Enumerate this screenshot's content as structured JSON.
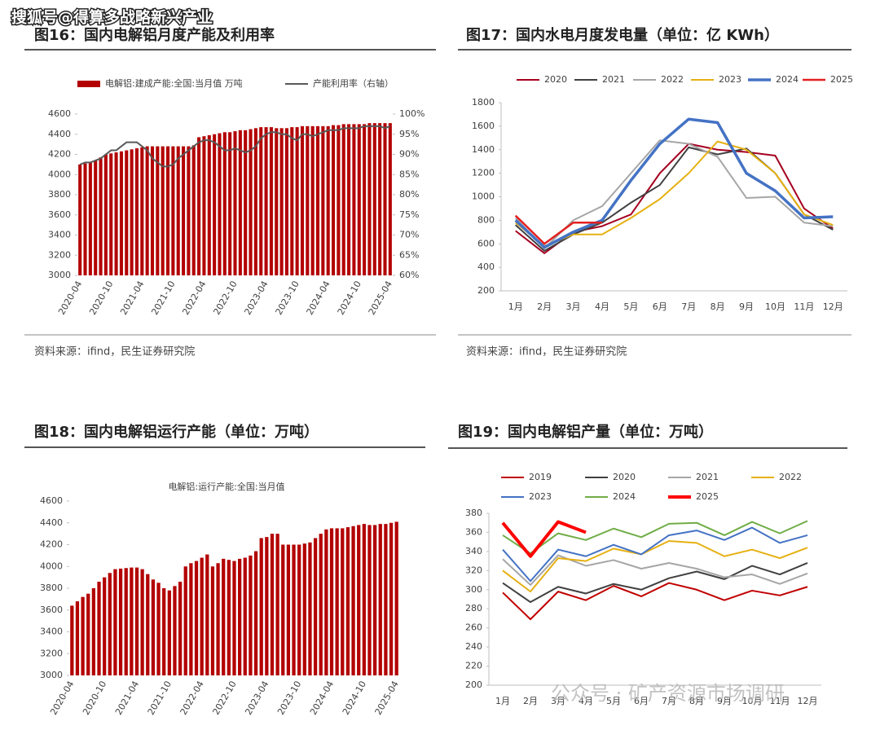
{
  "watermark": "搜狐号@得算多战略新兴产业",
  "watermark_bottom": "公众号 · 矿产资源市场调研",
  "chart_data": [
    {
      "type": "bar",
      "title": "图16：国内电解铝月度产能及利用率",
      "source": "资料来源：ifind，民生证券研究院",
      "categories": [
        "2020-04",
        null,
        null,
        null,
        null,
        null,
        "2020-10",
        null,
        null,
        null,
        null,
        null,
        "2021-04",
        null,
        null,
        null,
        null,
        null,
        "2021-10",
        null,
        null,
        null,
        null,
        null,
        "2022-04",
        null,
        null,
        null,
        null,
        null,
        "2022-10",
        null,
        null,
        null,
        null,
        null,
        "2023-04",
        null,
        null,
        null,
        null,
        null,
        "2023-10",
        null,
        null,
        null,
        null,
        null,
        "2024-04",
        null,
        null,
        null,
        null,
        null,
        "2024-10",
        null,
        null,
        null,
        null,
        null,
        "2025-04"
      ],
      "series": [
        {
          "name": "电解铝:建成产能:全国:当月值 万吨",
          "color": "#b30000",
          "values": [
            4100,
            4110,
            4120,
            4140,
            4170,
            4200,
            4210,
            4220,
            4230,
            4240,
            4250,
            4260,
            4270,
            4280,
            4280,
            4280,
            4280,
            4280,
            4280,
            4280,
            4280,
            4280,
            4290,
            4370,
            4380,
            4390,
            4400,
            4410,
            4420,
            4420,
            4430,
            4440,
            4440,
            4450,
            4460,
            4470,
            4470,
            4470,
            4460,
            4460,
            4460,
            4470,
            4470,
            4480,
            4480,
            4480,
            4480,
            4480,
            4480,
            4490,
            4490,
            4500,
            4500,
            4500,
            4500,
            4500,
            4510,
            4510,
            4510,
            4510,
            4510
          ]
        },
        {
          "name": "产能利用率（右轴）",
          "color": "#595959",
          "axis": "y2",
          "values": [
            87.5,
            88,
            88,
            88.5,
            89,
            90,
            91,
            91,
            92,
            93,
            93,
            93,
            92,
            91,
            89,
            88,
            87,
            87,
            87.5,
            89,
            90,
            91,
            92,
            93,
            93.5,
            93.5,
            93,
            92,
            91,
            91,
            91.5,
            91,
            90.5,
            91,
            92,
            94,
            95,
            95.5,
            95.5,
            95,
            95,
            94,
            93.5,
            95,
            95,
            94.5,
            95,
            95.5,
            96,
            96,
            96,
            96.5,
            96.5,
            96.5,
            96.5,
            97,
            97,
            97,
            97,
            96.5,
            97
          ]
        }
      ],
      "ylim": [
        3000,
        4600
      ],
      "yticks": [
        3000,
        3200,
        3400,
        3600,
        3800,
        4000,
        4200,
        4400,
        4600
      ],
      "y2lim": [
        60,
        100
      ],
      "y2ticks": [
        {
          "value": 60,
          "label": "60%"
        },
        {
          "value": 65,
          "label": "65%"
        },
        {
          "value": 70,
          "label": "70%"
        },
        {
          "value": 75,
          "label": "75%"
        },
        {
          "value": 80,
          "label": "80%"
        },
        {
          "value": 85,
          "label": "85%"
        },
        {
          "value": 90,
          "label": "90%"
        },
        {
          "value": 95,
          "label": "95%"
        },
        {
          "value": 100,
          "label": "100%"
        }
      ]
    },
    {
      "type": "line",
      "title": "图17：国内水电月度发电量（单位：亿 KWh）",
      "source": "资料来源：ifind，民生证券研究院",
      "categories": [
        "1月",
        "2月",
        "3月",
        "4月",
        "5月",
        "6月",
        "7月",
        "8月",
        "9月",
        "10月",
        "11月",
        "12月"
      ],
      "series": [
        {
          "name": "2020",
          "color": "#a50021",
          "width": 2,
          "values": [
            710,
            520,
            700,
            750,
            850,
            1200,
            1450,
            1400,
            1380,
            1350,
            900,
            730
          ]
        },
        {
          "name": "2021",
          "color": "#404040",
          "width": 2,
          "values": [
            760,
            540,
            680,
            780,
            950,
            1100,
            1420,
            1360,
            1410,
            1200,
            850,
            720
          ]
        },
        {
          "name": "2022",
          "color": "#a6a6a6",
          "width": 2,
          "values": [
            820,
            560,
            800,
            920,
            1200,
            1480,
            1450,
            1340,
            990,
            1000,
            780,
            750
          ]
        },
        {
          "name": "2023",
          "color": "#e6b012",
          "width": 2,
          "values": [
            780,
            580,
            680,
            680,
            820,
            980,
            1200,
            1470,
            1400,
            1200,
            850,
            760
          ]
        },
        {
          "name": "2024",
          "color": "#4472c4",
          "width": 3.5,
          "values": [
            800,
            570,
            700,
            800,
            1140,
            1450,
            1660,
            1630,
            1200,
            1050,
            820,
            830
          ]
        },
        {
          "name": "2025",
          "color": "#e32020",
          "width": 2.5,
          "values": [
            840,
            600,
            780,
            780,
            null,
            null,
            null,
            null,
            null,
            null,
            null,
            null
          ]
        }
      ],
      "ylim": [
        200,
        1800
      ],
      "yticks": [
        200,
        400,
        600,
        800,
        1000,
        1200,
        1400,
        1600,
        1800
      ]
    },
    {
      "type": "bar",
      "title": "图18：国内电解铝运行产能（单位：万吨）",
      "categories": [
        "2020-04",
        null,
        null,
        null,
        null,
        null,
        "2020-10",
        null,
        null,
        null,
        null,
        null,
        "2021-04",
        null,
        null,
        null,
        null,
        null,
        "2021-10",
        null,
        null,
        null,
        null,
        null,
        "2022-04",
        null,
        null,
        null,
        null,
        null,
        "2022-10",
        null,
        null,
        null,
        null,
        null,
        "2023-04",
        null,
        null,
        null,
        null,
        null,
        "2023-10",
        null,
        null,
        null,
        null,
        null,
        "2024-04",
        null,
        null,
        null,
        null,
        null,
        "2024-10",
        null,
        null,
        null,
        null,
        null,
        "2025-04"
      ],
      "series": [
        {
          "name": "电解铝:运行产能:全国:当月值",
          "color": "#b30000",
          "values": [
            3640,
            3680,
            3720,
            3750,
            3800,
            3860,
            3900,
            3940,
            3975,
            3980,
            3985,
            3990,
            3990,
            3975,
            3930,
            3880,
            3850,
            3800,
            3780,
            3820,
            3860,
            4000,
            4030,
            4050,
            4080,
            4110,
            4000,
            4030,
            4070,
            4060,
            4050,
            4070,
            4080,
            4100,
            4140,
            4260,
            4270,
            4300,
            4300,
            4200,
            4200,
            4200,
            4200,
            4210,
            4220,
            4260,
            4300,
            4340,
            4350,
            4350,
            4350,
            4360,
            4370,
            4380,
            4390,
            4380,
            4380,
            4390,
            4390,
            4400,
            4410
          ]
        }
      ],
      "ylim": [
        3000,
        4600
      ],
      "yticks": [
        3000,
        3200,
        3400,
        3600,
        3800,
        4000,
        4200,
        4400,
        4600
      ]
    },
    {
      "type": "line",
      "title": "图19：国内电解铝产量（单位：万吨）",
      "categories": [
        "1月",
        "2月",
        "3月",
        "4月",
        "5月",
        "6月",
        "7月",
        "8月",
        "9月",
        "10月",
        "11月",
        "12月"
      ],
      "series": [
        {
          "name": "2019",
          "color": "#c00000",
          "width": 2,
          "values": [
            297,
            269,
            298,
            289,
            304,
            293,
            307,
            300,
            289,
            299,
            294,
            303
          ]
        },
        {
          "name": "2020",
          "color": "#404040",
          "width": 2,
          "values": [
            307,
            287,
            303,
            296,
            306,
            300,
            312,
            319,
            311,
            325,
            316,
            328
          ]
        },
        {
          "name": "2021",
          "color": "#a6a6a6",
          "width": 2,
          "values": [
            332,
            305,
            336,
            325,
            331,
            322,
            328,
            322,
            313,
            316,
            306,
            317
          ]
        },
        {
          "name": "2022",
          "color": "#e6b012",
          "width": 2,
          "values": [
            320,
            298,
            333,
            330,
            343,
            337,
            351,
            349,
            335,
            342,
            333,
            344
          ]
        },
        {
          "name": "2023",
          "color": "#4472c4",
          "width": 2,
          "values": [
            342,
            309,
            342,
            335,
            347,
            337,
            357,
            362,
            352,
            365,
            349,
            357
          ]
        },
        {
          "name": "2024",
          "color": "#70ad47",
          "width": 2,
          "values": [
            357,
            338,
            359,
            352,
            364,
            355,
            369,
            370,
            357,
            371,
            359,
            372
          ]
        },
        {
          "name": "2025",
          "color": "#ff0000",
          "width": 4,
          "values": [
            370,
            335,
            371,
            360,
            null,
            null,
            null,
            null,
            null,
            null,
            null,
            null
          ]
        }
      ],
      "ylim": [
        200,
        380
      ],
      "yticks": [
        200,
        220,
        240,
        260,
        280,
        300,
        320,
        340,
        360,
        380
      ]
    }
  ]
}
